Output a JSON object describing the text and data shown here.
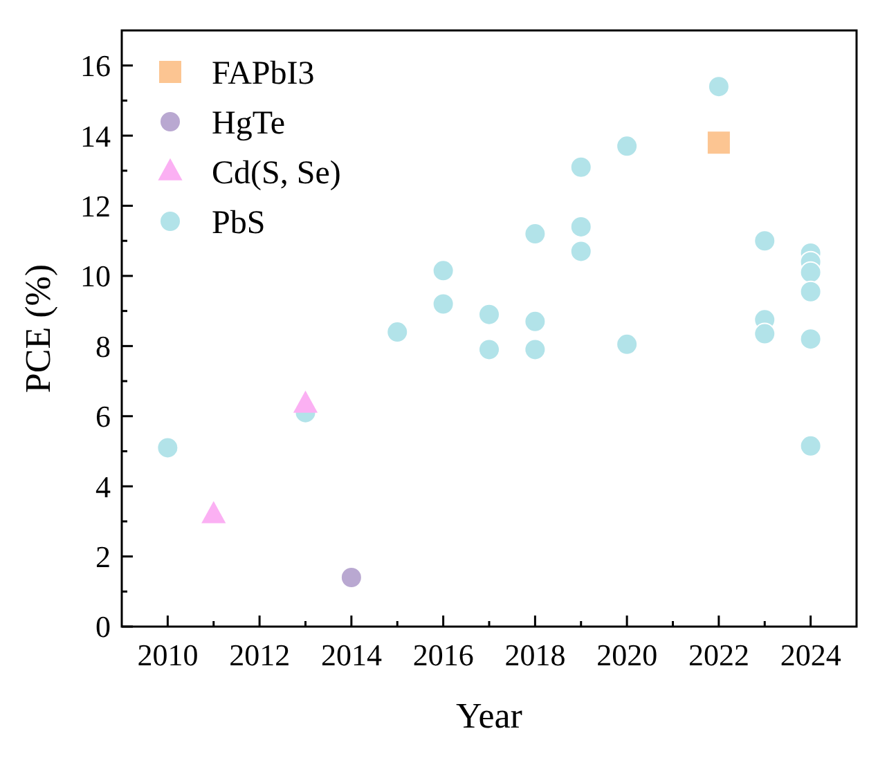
{
  "chart_data": {
    "type": "scatter",
    "xlabel": "Year",
    "ylabel": "PCE (%)",
    "xlim": [
      2009,
      2025
    ],
    "ylim": [
      0,
      17
    ],
    "xticks": [
      2010,
      {
        "value": 2011,
        "label": null
      },
      2012,
      {
        "value": 2013,
        "label": null
      },
      2014,
      {
        "value": 2015,
        "label": null
      },
      2016,
      {
        "value": 2017,
        "label": null
      },
      2018,
      {
        "value": 2019,
        "label": null
      },
      2020,
      {
        "value": 2021,
        "label": null
      },
      2022,
      {
        "value": 2023,
        "label": null
      },
      2024
    ],
    "yticks": [
      0,
      {
        "value": 1,
        "label": null
      },
      2,
      {
        "value": 3,
        "label": null
      },
      4,
      {
        "value": 5,
        "label": null
      },
      6,
      {
        "value": 7,
        "label": null
      },
      8,
      {
        "value": 9,
        "label": null
      },
      10,
      {
        "value": 11,
        "label": null
      },
      12,
      {
        "value": 13,
        "label": null
      },
      14,
      {
        "value": 15,
        "label": null
      },
      16
    ],
    "grid": false,
    "legend": "top left",
    "series": [
      {
        "name": "FAPbI3",
        "color": "#fcc592",
        "marker": "square",
        "x": [
          2022
        ],
        "values": [
          13.8
        ]
      },
      {
        "name": "HgTe",
        "color": "#b9a8d1",
        "marker": "circle",
        "x": [
          2014
        ],
        "values": [
          1.4
        ]
      },
      {
        "name": "Cd(S, Se)",
        "color": "#fbb0f3",
        "marker": "triangle",
        "x": [
          2011,
          2013
        ],
        "values": [
          3.2,
          6.35
        ]
      },
      {
        "name": "PbS",
        "color": "#b2e3e9",
        "marker": "circle",
        "x": [
          2010,
          2013,
          2015,
          2016,
          2016,
          2017,
          2017,
          2018,
          2018,
          2018,
          2019,
          2019,
          2019,
          2020,
          2020,
          2022,
          2023,
          2023,
          2023,
          2024,
          2024,
          2024,
          2024,
          2024,
          2024
        ],
        "values": [
          5.1,
          6.1,
          8.4,
          9.2,
          10.15,
          8.9,
          7.9,
          8.7,
          7.9,
          11.2,
          13.1,
          11.4,
          10.7,
          13.7,
          8.05,
          15.4,
          11.0,
          8.75,
          8.35,
          10.65,
          10.4,
          10.1,
          9.55,
          8.2,
          5.15
        ]
      }
    ]
  }
}
